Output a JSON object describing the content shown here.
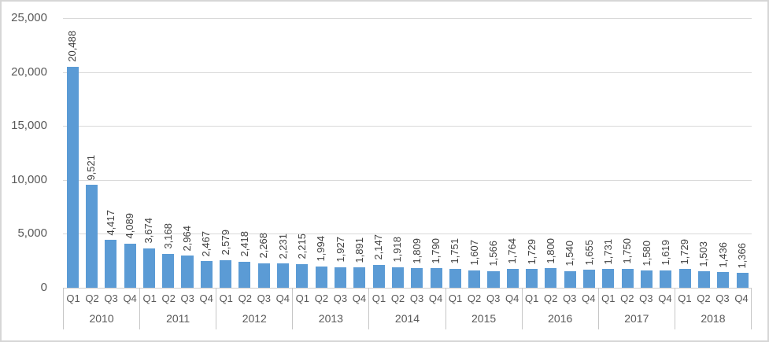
{
  "chart_data": {
    "type": "bar",
    "title": "",
    "xlabel": "",
    "ylabel": "",
    "ylim": [
      0,
      25000
    ],
    "y_tick_labels": [
      "25,000",
      "20,000",
      "15,000",
      "10,000",
      "5,000",
      "0"
    ],
    "grid": true,
    "legend": false,
    "bar_color": "#5B9BD5",
    "data_label_color": "#404040",
    "axis_text_color": "#595959",
    "gridline_color": "#D9D9D9",
    "groups": [
      {
        "year": "2010",
        "quarters": [
          "Q1",
          "Q2",
          "Q3",
          "Q4"
        ],
        "values": [
          20488,
          9521,
          4417,
          4089
        ],
        "labels": [
          "20,488",
          "9,521",
          "4,417",
          "4,089"
        ]
      },
      {
        "year": "2011",
        "quarters": [
          "Q1",
          "Q2",
          "Q3",
          "Q4"
        ],
        "values": [
          3674,
          3168,
          2964,
          2467
        ],
        "labels": [
          "3,674",
          "3,168",
          "2,964",
          "2,467"
        ]
      },
      {
        "year": "2012",
        "quarters": [
          "Q1",
          "Q2",
          "Q3",
          "Q4"
        ],
        "values": [
          2579,
          2418,
          2268,
          2231
        ],
        "labels": [
          "2,579",
          "2,418",
          "2,268",
          "2,231"
        ]
      },
      {
        "year": "2013",
        "quarters": [
          "Q1",
          "Q2",
          "Q3",
          "Q4"
        ],
        "values": [
          2215,
          1994,
          1927,
          1891
        ],
        "labels": [
          "2,215",
          "1,994",
          "1,927",
          "1,891"
        ]
      },
      {
        "year": "2014",
        "quarters": [
          "Q1",
          "Q2",
          "Q3",
          "Q4"
        ],
        "values": [
          2147,
          1918,
          1809,
          1790
        ],
        "labels": [
          "2,147",
          "1,918",
          "1,809",
          "1,790"
        ]
      },
      {
        "year": "2015",
        "quarters": [
          "Q1",
          "Q2",
          "Q3",
          "Q4"
        ],
        "values": [
          1751,
          1607,
          1566,
          1764
        ],
        "labels": [
          "1,751",
          "1,607",
          "1,566",
          "1,764"
        ]
      },
      {
        "year": "2016",
        "quarters": [
          "Q1",
          "Q2",
          "Q3",
          "Q4"
        ],
        "values": [
          1729,
          1800,
          1540,
          1655
        ],
        "labels": [
          "1,729",
          "1,800",
          "1,540",
          "1,655"
        ]
      },
      {
        "year": "2017",
        "quarters": [
          "Q1",
          "Q2",
          "Q3",
          "Q4"
        ],
        "values": [
          1731,
          1750,
          1580,
          1619
        ],
        "labels": [
          "1,731",
          "1,750",
          "1,580",
          "1,619"
        ]
      },
      {
        "year": "2018",
        "quarters": [
          "Q1",
          "Q2",
          "Q3",
          "Q4"
        ],
        "values": [
          1729,
          1503,
          1436,
          1366
        ],
        "labels": [
          "1,729",
          "1,503",
          "1,436",
          "1,366"
        ]
      }
    ]
  }
}
